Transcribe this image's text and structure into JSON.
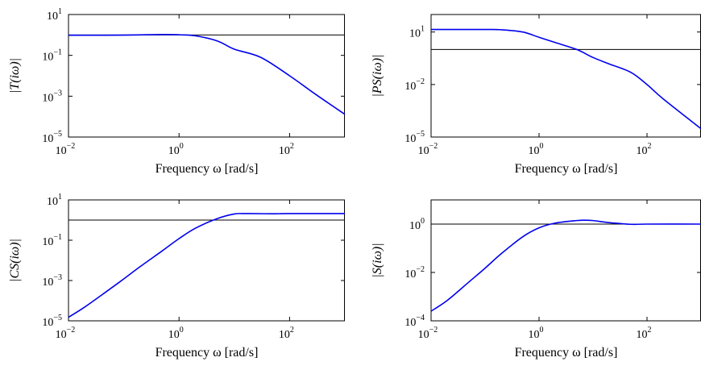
{
  "colors": {
    "curve": "#0000ee",
    "reference": "#000000",
    "axes": "#000000"
  },
  "chart_data": [
    {
      "type": "line",
      "ylabel": "|T(iω)|",
      "xlabel": "Frequency ω [rad/s]",
      "xscale": "log",
      "yscale": "log",
      "xlim": [
        0.01,
        1000
      ],
      "ylim": [
        1e-05,
        10
      ],
      "xticks": [
        {
          "base": "10",
          "exp": "−2",
          "value": 0.01
        },
        {
          "base": "10",
          "exp": "0",
          "value": 1
        },
        {
          "base": "10",
          "exp": "2",
          "value": 100
        }
      ],
      "yticks": [
        {
          "base": "10",
          "exp": "−5",
          "value": 1e-05
        },
        {
          "base": "10",
          "exp": "−3",
          "value": 0.001
        },
        {
          "base": "10",
          "exp": "−1",
          "value": 0.1
        },
        {
          "base": "10",
          "exp": "1",
          "value": 10
        }
      ],
      "reference_line": 1,
      "grid": false,
      "series": [
        {
          "x": [
            0.01,
            0.1,
            0.5,
            1,
            2,
            5,
            10,
            30,
            100,
            300,
            1000
          ],
          "y": [
            0.97,
            0.98,
            1.05,
            1.02,
            0.9,
            0.5,
            0.2,
            0.08,
            0.01,
            0.0012,
            0.00013
          ]
        }
      ]
    },
    {
      "type": "line",
      "ylabel": "|PS(iω)|",
      "xlabel": "Frequency ω [rad/s]",
      "xscale": "log",
      "yscale": "log",
      "xlim": [
        0.01,
        1000
      ],
      "ylim": [
        1e-05,
        100
      ],
      "xticks": [
        {
          "base": "10",
          "exp": "−2",
          "value": 0.01
        },
        {
          "base": "10",
          "exp": "0",
          "value": 1
        },
        {
          "base": "10",
          "exp": "2",
          "value": 100
        }
      ],
      "yticks": [
        {
          "base": "10",
          "exp": "−5",
          "value": 1e-05
        },
        {
          "base": "10",
          "exp": "−2",
          "value": 0.01
        },
        {
          "base": "10",
          "exp": "1",
          "value": 10
        }
      ],
      "reference_line": 1,
      "grid": false,
      "series": [
        {
          "x": [
            0.01,
            0.1,
            0.2,
            0.5,
            1,
            2,
            5,
            10,
            20,
            50,
            100,
            200,
            1000
          ],
          "y": [
            14,
            14,
            13.5,
            10,
            5,
            2.5,
            1,
            0.35,
            0.15,
            0.05,
            0.01,
            0.0015,
            3e-05
          ]
        }
      ]
    },
    {
      "type": "line",
      "ylabel": "|CS(iω)|",
      "xlabel": "Frequency ω [rad/s]",
      "xscale": "log",
      "yscale": "log",
      "xlim": [
        0.01,
        1000
      ],
      "ylim": [
        1e-05,
        10
      ],
      "xticks": [
        {
          "base": "10",
          "exp": "−2",
          "value": 0.01
        },
        {
          "base": "10",
          "exp": "0",
          "value": 1
        },
        {
          "base": "10",
          "exp": "2",
          "value": 100
        }
      ],
      "yticks": [
        {
          "base": "10",
          "exp": "−5",
          "value": 1e-05
        },
        {
          "base": "10",
          "exp": "−3",
          "value": 0.001
        },
        {
          "base": "10",
          "exp": "−1",
          "value": 0.1
        },
        {
          "base": "10",
          "exp": "1",
          "value": 10
        }
      ],
      "reference_line": 1,
      "grid": false,
      "series": [
        {
          "x": [
            0.01,
            0.02,
            0.05,
            0.1,
            0.2,
            0.5,
            1,
            2,
            5,
            10,
            15,
            20,
            50,
            100,
            1000
          ],
          "y": [
            1.5e-05,
            5e-05,
            0.0003,
            0.0012,
            0.005,
            0.03,
            0.12,
            0.4,
            1.2,
            2,
            2.1,
            2.1,
            2.05,
            2.1,
            2.1
          ]
        }
      ]
    },
    {
      "type": "line",
      "ylabel": "|S(iω)|",
      "xlabel": "Frequency ω [rad/s]",
      "xscale": "log",
      "yscale": "log",
      "xlim": [
        0.01,
        1000
      ],
      "ylim": [
        0.0001,
        10
      ],
      "xticks": [
        {
          "base": "10",
          "exp": "−2",
          "value": 0.01
        },
        {
          "base": "10",
          "exp": "0",
          "value": 1
        },
        {
          "base": "10",
          "exp": "2",
          "value": 100
        }
      ],
      "yticks": [
        {
          "base": "10",
          "exp": "−4",
          "value": 0.0001
        },
        {
          "base": "10",
          "exp": "−2",
          "value": 0.01
        },
        {
          "base": "10",
          "exp": "0",
          "value": 1
        }
      ],
      "reference_line": 1,
      "grid": false,
      "series": [
        {
          "x": [
            0.01,
            0.02,
            0.05,
            0.1,
            0.2,
            0.5,
            1,
            2,
            5,
            7,
            10,
            20,
            50,
            100,
            1000
          ],
          "y": [
            0.00025,
            0.0007,
            0.004,
            0.015,
            0.06,
            0.3,
            0.7,
            1.1,
            1.4,
            1.45,
            1.4,
            1.15,
            0.98,
            1,
            1
          ]
        }
      ]
    }
  ]
}
